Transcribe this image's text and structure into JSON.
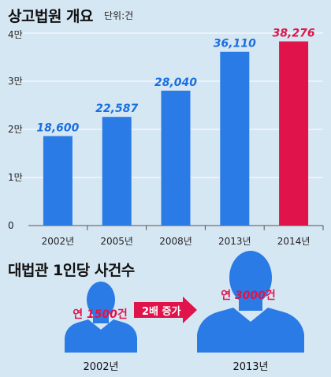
{
  "header": {
    "title": "상고법원 개요",
    "unit": "단위:건"
  },
  "chart_data": {
    "type": "bar",
    "title": "상고법원 개요",
    "unit": "단위:건",
    "categories": [
      "2002년",
      "2005년",
      "2008년",
      "2013년",
      "2014년"
    ],
    "values": [
      18600,
      22587,
      28040,
      36110,
      38276
    ],
    "value_labels": [
      "18,600",
      "22,587",
      "28,040",
      "36,110",
      "38,276"
    ],
    "highlight_index": 4,
    "ylim": [
      0,
      40000
    ],
    "yticks": [
      0,
      10000,
      20000,
      30000,
      40000
    ],
    "ytick_labels": [
      "0",
      "1만",
      "2만",
      "3만",
      "4만"
    ],
    "grid": true,
    "colors": {
      "bar": "#2a7be6",
      "bar_highlight": "#e0134a",
      "label": "#1a6fe0",
      "label_highlight": "#e0134a",
      "grid": "#ffffff"
    }
  },
  "comparison": {
    "title": "대법관 1인당 사건수",
    "left": {
      "year": "2002년",
      "prefix": "연 ",
      "number": "1500",
      "suffix": "건"
    },
    "arrow": "2배 증가",
    "right": {
      "year": "2013년",
      "prefix": "연 ",
      "number": "3000",
      "suffix": "건"
    },
    "colors": {
      "silhouette": "#2a7be6",
      "arrow": "#e0134a"
    }
  }
}
